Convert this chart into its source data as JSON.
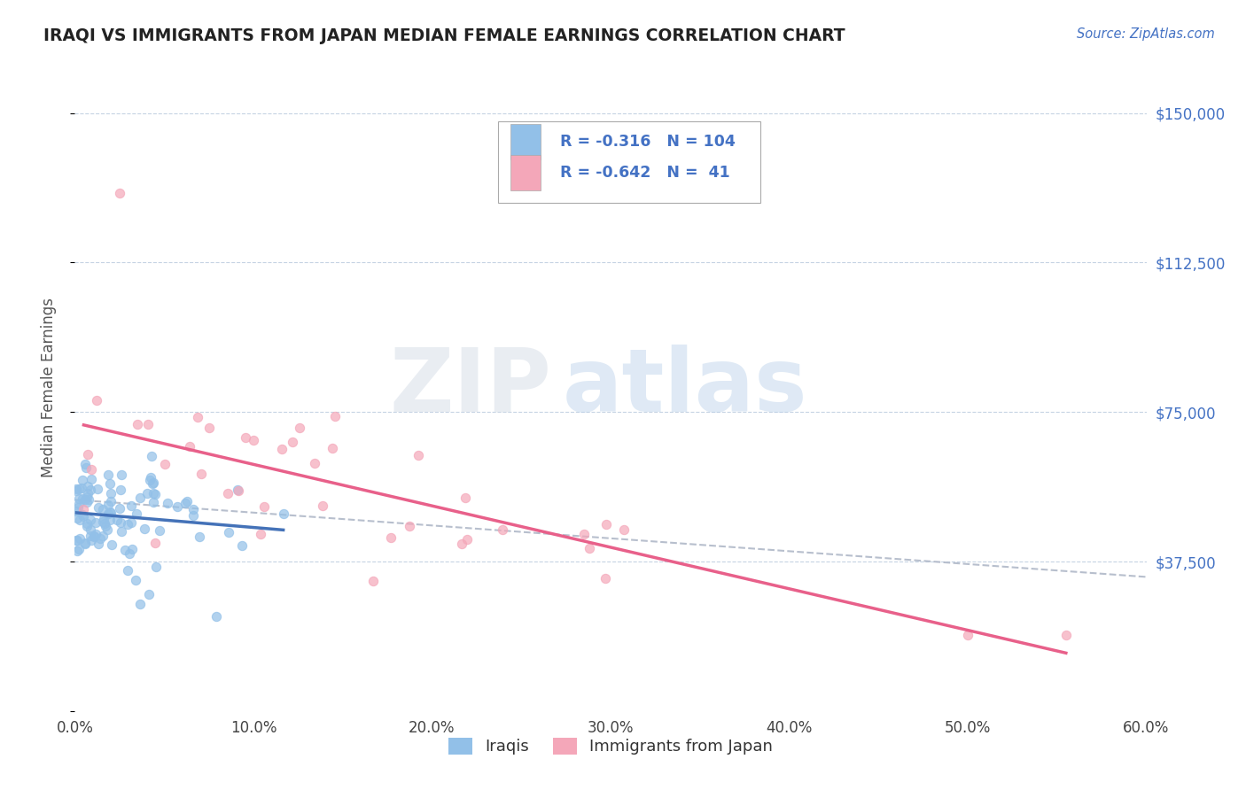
{
  "title": "IRAQI VS IMMIGRANTS FROM JAPAN MEDIAN FEMALE EARNINGS CORRELATION CHART",
  "source": "Source: ZipAtlas.com",
  "ylabel": "Median Female Earnings",
  "xlim": [
    0.0,
    0.6
  ],
  "ylim": [
    0,
    162500
  ],
  "yticks": [
    0,
    37500,
    75000,
    112500,
    150000
  ],
  "ytick_labels": [
    "",
    "$37,500",
    "$75,000",
    "$112,500",
    "$150,000"
  ],
  "xticks": [
    0.0,
    0.1,
    0.2,
    0.3,
    0.4,
    0.5,
    0.6
  ],
  "xtick_labels": [
    "0.0%",
    "10.0%",
    "20.0%",
    "30.0%",
    "40.0%",
    "50.0%",
    "60.0%"
  ],
  "watermark_zip": "ZIP",
  "watermark_atlas": "atlas",
  "legend_R1": "-0.316",
  "legend_N1": "104",
  "legend_R2": "-0.642",
  "legend_N2": " 41",
  "legend_label1": "Iraqis",
  "legend_label2": "Immigrants from Japan",
  "color_blue": "#92c0e8",
  "color_pink": "#f4a7b9",
  "color_blue_line": "#4472b8",
  "color_pink_line": "#e8608a",
  "color_dashed": "#b0b8c8",
  "color_title": "#222222",
  "color_ytick": "#4472c4",
  "color_xtick": "#444444",
  "background_color": "#ffffff",
  "grid_color": "#c0cfe0",
  "seed": 99,
  "n_iraqis": 104,
  "n_japan": 41
}
